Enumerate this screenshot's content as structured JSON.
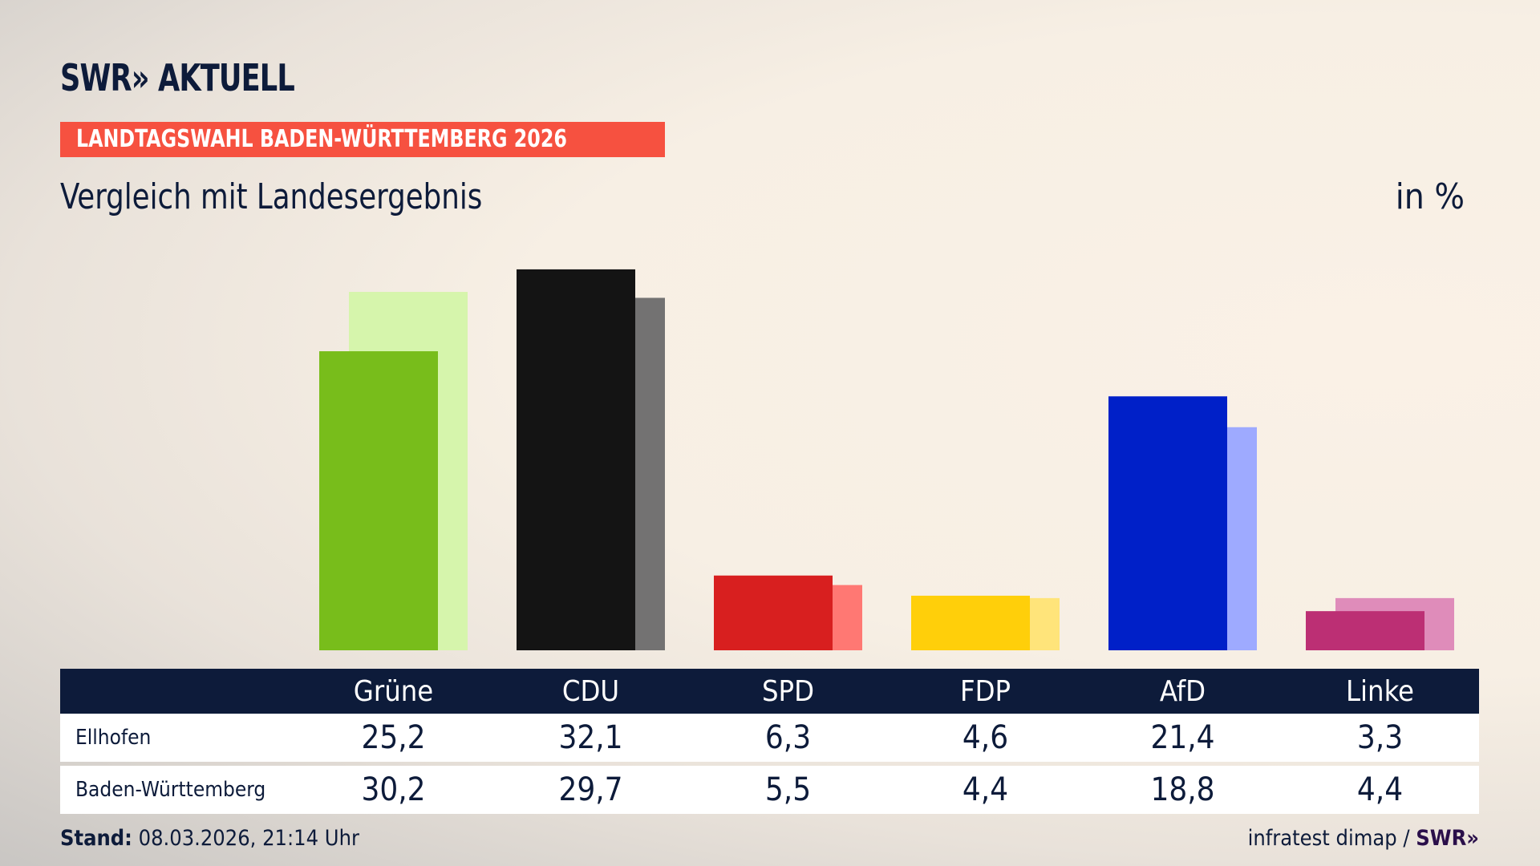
{
  "header": {
    "logo": "SWR» AKTUELL",
    "banner": "LANDTAGSWAHL BADEN-WÜRTTEMBERG 2026",
    "subtitle": "Vergleich mit Landesergebnis",
    "unit": "in %"
  },
  "chart_data": {
    "type": "bar",
    "categories": [
      "Grüne",
      "CDU",
      "SPD",
      "FDP",
      "AfD",
      "Linke"
    ],
    "series": [
      {
        "name": "Ellhofen",
        "values": [
          25.2,
          32.1,
          6.3,
          4.6,
          21.4,
          3.3
        ]
      },
      {
        "name": "Baden-Württemberg",
        "values": [
          30.2,
          29.7,
          5.5,
          4.4,
          18.8,
          4.4
        ]
      }
    ],
    "colors": {
      "Ellhofen": [
        "#78bd1b",
        "#141414",
        "#d81f1f",
        "#ffcf0a",
        "#0020c8",
        "#bc2f74"
      ],
      "Baden-Württemberg": [
        "#d6f5ac",
        "#737272",
        "#ff7873",
        "#ffe47a",
        "#9eaaff",
        "#df8cba"
      ]
    },
    "ylim": [
      0,
      33
    ]
  },
  "table": {
    "rows": [
      {
        "label": "Ellhofen",
        "values": [
          "25,2",
          "32,1",
          "6,3",
          "4,6",
          "21,4",
          "3,3"
        ]
      },
      {
        "label": "Baden-Württemberg",
        "values": [
          "30,2",
          "29,7",
          "5,5",
          "4,4",
          "18,8",
          "4,4"
        ]
      }
    ]
  },
  "footer": {
    "stand_label": "Stand:",
    "stand_value": "08.03.2026, 21:14 Uhr",
    "source": "infratest dimap /",
    "source_logo": "SWR»"
  }
}
